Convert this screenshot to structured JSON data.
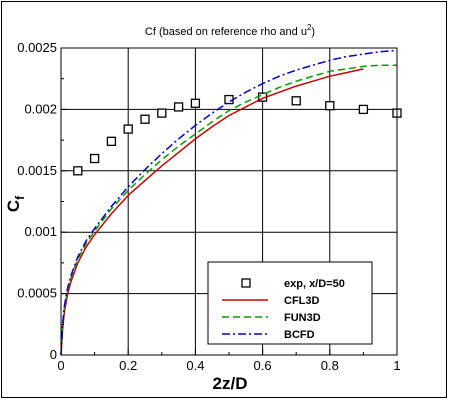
{
  "chart_data": {
    "type": "line",
    "title_main": "Cf (based on reference rho and u",
    "title_sup": "2",
    "title_end": ")",
    "xlabel": "2z/D",
    "ylabel_main": "C",
    "ylabel_sub": "f",
    "xlim": [
      0,
      1
    ],
    "ylim": [
      0,
      0.0025
    ],
    "xticks": [
      0,
      0.2,
      0.4,
      0.6,
      0.8,
      1
    ],
    "xtick_labels": [
      "0",
      "0.2",
      "0.4",
      "0.6",
      "0.8",
      "1"
    ],
    "yticks": [
      0,
      0.0005,
      0.001,
      0.0015,
      0.002,
      0.0025
    ],
    "ytick_labels": [
      "0",
      "0.0005",
      "0.001",
      "0.0015",
      "0.002",
      "0.0025"
    ],
    "grid": true,
    "legend_position": "bottom-right",
    "series": [
      {
        "name": "exp, x/D=50",
        "style": "markers",
        "color": "#000000",
        "x": [
          0.05,
          0.1,
          0.15,
          0.2,
          0.25,
          0.3,
          0.35,
          0.4,
          0.5,
          0.6,
          0.7,
          0.8,
          0.9,
          1.0
        ],
        "y": [
          0.0015,
          0.0016,
          0.00174,
          0.00184,
          0.00192,
          0.00197,
          0.00202,
          0.00205,
          0.00208,
          0.0021,
          0.00207,
          0.00203,
          0.002,
          0.00197
        ]
      },
      {
        "name": "CFL3D",
        "style": "solid",
        "color": "#cc0000",
        "x": [
          0.0,
          0.005,
          0.01,
          0.02,
          0.03,
          0.05,
          0.075,
          0.1,
          0.15,
          0.2,
          0.25,
          0.3,
          0.35,
          0.4,
          0.45,
          0.5,
          0.55,
          0.6,
          0.65,
          0.7,
          0.75,
          0.8,
          0.85,
          0.9
        ],
        "y": [
          0.0,
          0.00022,
          0.00035,
          0.0005,
          0.0006,
          0.00075,
          0.00088,
          0.00098,
          0.00115,
          0.0013,
          0.00142,
          0.00154,
          0.00165,
          0.00176,
          0.00186,
          0.00195,
          0.00202,
          0.00209,
          0.00214,
          0.00219,
          0.00223,
          0.00227,
          0.0023,
          0.00233
        ]
      },
      {
        "name": "FUN3D",
        "style": "dashed",
        "color": "#00a000",
        "x": [
          0.0,
          0.005,
          0.01,
          0.02,
          0.03,
          0.05,
          0.075,
          0.1,
          0.15,
          0.2,
          0.25,
          0.3,
          0.35,
          0.4,
          0.45,
          0.5,
          0.55,
          0.6,
          0.65,
          0.7,
          0.75,
          0.8,
          0.85,
          0.9,
          0.95,
          1.0
        ],
        "y": [
          0.0,
          0.00025,
          0.00038,
          0.00053,
          0.00063,
          0.00078,
          0.00091,
          0.00101,
          0.00119,
          0.00134,
          0.00147,
          0.00159,
          0.0017,
          0.0018,
          0.0019,
          0.00199,
          0.00206,
          0.00212,
          0.00218,
          0.00223,
          0.00227,
          0.00231,
          0.00233,
          0.00235,
          0.00236,
          0.00236
        ]
      },
      {
        "name": "BCFD",
        "style": "dashdot",
        "color": "#0000cc",
        "x": [
          0.0,
          0.005,
          0.01,
          0.02,
          0.03,
          0.05,
          0.075,
          0.1,
          0.15,
          0.2,
          0.25,
          0.3,
          0.35,
          0.4,
          0.45,
          0.5,
          0.55,
          0.6,
          0.65,
          0.7,
          0.75,
          0.8,
          0.85,
          0.9,
          0.95,
          1.0
        ],
        "y": [
          0.0,
          0.00026,
          0.0004,
          0.00055,
          0.00065,
          0.0008,
          0.00093,
          0.00103,
          0.00121,
          0.00137,
          0.00151,
          0.00164,
          0.00176,
          0.00187,
          0.00197,
          0.00206,
          0.00214,
          0.00221,
          0.00227,
          0.00232,
          0.00236,
          0.0024,
          0.00243,
          0.00245,
          0.00247,
          0.00248
        ]
      }
    ]
  }
}
